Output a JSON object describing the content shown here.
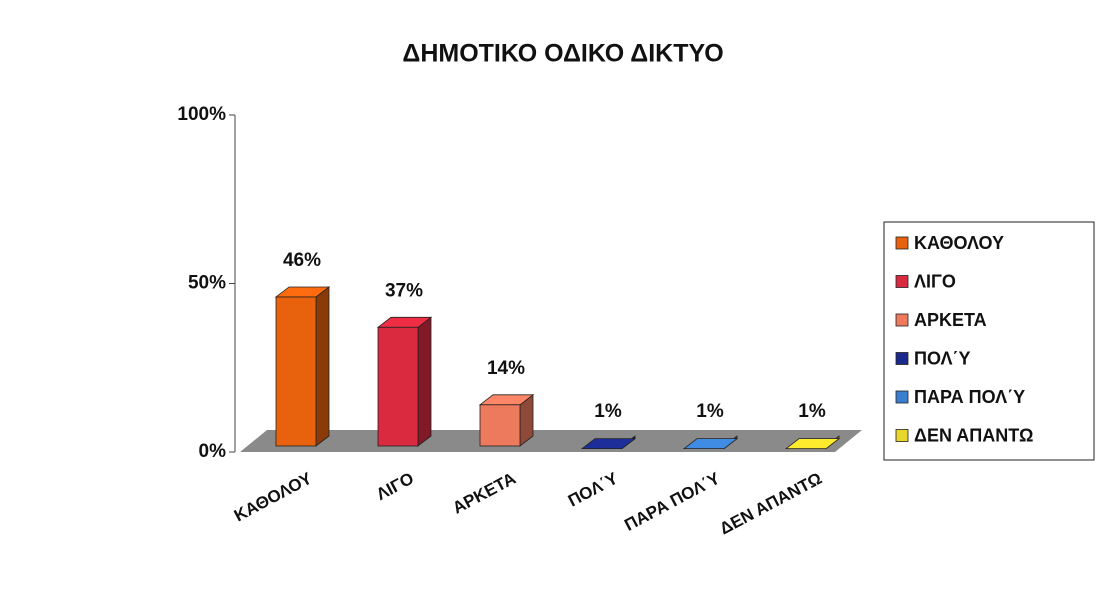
{
  "chart_data": {
    "type": "bar3d",
    "title": "ΔΗΜΟΤΙΚΟ ΟΔΙΚΟ ΔΙΚΤΥΟ",
    "categories": [
      "ΚΑΘΟΛΟΥ",
      "ΛΙΓΟ",
      "ΑΡΚΕΤΑ",
      "ΠΟΛ΄Υ",
      "ΠΑΡΑ ΠΟΛ΄Υ",
      "ΔΕΝ ΑΠΑΝΤΩ"
    ],
    "values": [
      46,
      37,
      14,
      1,
      1,
      1
    ],
    "value_labels": [
      "46%",
      "37%",
      "14%",
      "1%",
      "1%",
      "1%"
    ],
    "colors": [
      "#e8620e",
      "#d92a3f",
      "#ee7a5e",
      "#1a2a8c",
      "#3a7fcf",
      "#e8d62a"
    ],
    "ylim": [
      0,
      100
    ],
    "yticks": [
      {
        "value": 0,
        "label": "0%"
      },
      {
        "value": 50,
        "label": "50%"
      },
      {
        "value": 100,
        "label": "100%"
      }
    ],
    "legend": "right"
  }
}
